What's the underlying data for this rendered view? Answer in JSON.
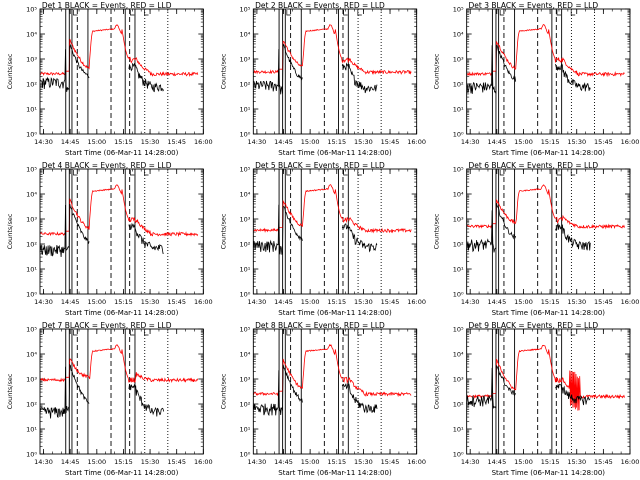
{
  "chart_data": {
    "type": "line",
    "layout": "3x3 grid of light-curve panels",
    "ylabel": "Counts/sec",
    "xlabel": "Start Time (06-Mar-11 14:28:00)",
    "x_ticks": [
      "14:30",
      "14:45",
      "15:00",
      "15:15",
      "15:30",
      "15:45",
      "16:00"
    ],
    "x_range_min": [
      0,
      92
    ],
    "y_scale": "log",
    "y_ticks": [
      "10⁰",
      "10¹",
      "10²",
      "10³",
      "10⁴",
      "10⁵"
    ],
    "y_range_log": [
      0,
      5
    ],
    "vlines_solid_min": [
      14.5,
      16.5,
      18,
      27,
      48,
      53.5
    ],
    "vlines_dashed_min": [
      21,
      40,
      50.5
    ],
    "vlines_dotted_min": [
      59,
      72
    ],
    "line_colors": {
      "black": "#000000",
      "red": "#ff0000"
    },
    "panels": [
      {
        "title": "Det 1 BLACK = Events, RED = LLD",
        "event_base": 120,
        "lld_base": 250,
        "event_after": 80
      },
      {
        "title": "Det 2 BLACK = Events, RED = LLD",
        "event_base": 90,
        "lld_base": 300,
        "event_after": 70
      },
      {
        "title": "Det 3 BLACK = Events, RED = LLD",
        "event_base": 80,
        "lld_base": 250,
        "event_after": 80
      },
      {
        "title": "Det 4 BLACK = Events, RED = LLD",
        "event_base": 60,
        "lld_base": 250,
        "event_after": 70
      },
      {
        "title": "Det 5 BLACK = Events, RED = LLD",
        "event_base": 90,
        "lld_base": 350,
        "event_after": 80
      },
      {
        "title": "Det 6 BLACK = Events, RED = LLD",
        "event_base": 100,
        "lld_base": 500,
        "event_after": 90
      },
      {
        "title": "Det 7 BLACK = Events, RED = LLD",
        "event_base": 50,
        "lld_base": 900,
        "event_after": 50
      },
      {
        "title": "Det 8 BLACK = Events, RED = LLD",
        "event_base": 70,
        "lld_base": 250,
        "event_after": 70
      },
      {
        "title": "Det 9 BLACK = Events, RED = LLD",
        "event_base": 150,
        "lld_base": 200,
        "event_after": 150
      }
    ]
  }
}
